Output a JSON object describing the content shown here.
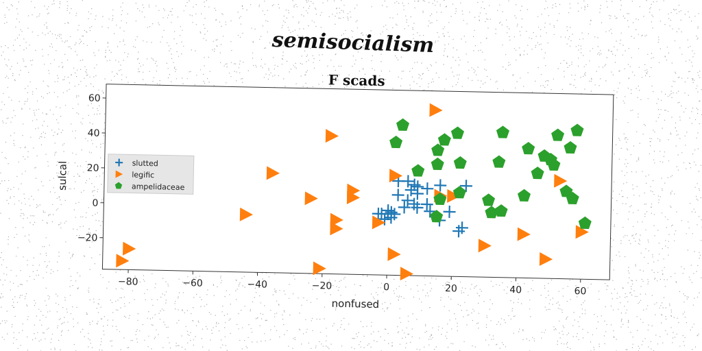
{
  "figure": {
    "suptitle": "semisocialism"
  },
  "chart_data": {
    "type": "scatter",
    "title": "F scads",
    "xlabel": "nonfused",
    "ylabel": "sulcal",
    "xlim": [
      -88,
      69
    ],
    "ylim": [
      -38,
      68
    ],
    "xticks": [
      -80,
      -60,
      -40,
      -20,
      0,
      20,
      40,
      60
    ],
    "yticks": [
      -20,
      0,
      20,
      40,
      60
    ],
    "xtick_labels": [
      "−80",
      "−60",
      "−40",
      "−20",
      "0",
      "20",
      "40",
      "60"
    ],
    "ytick_labels": [
      "−20",
      "0",
      "20",
      "40",
      "60"
    ],
    "grid": false,
    "legend_position": "center-left",
    "series": [
      {
        "name": "slutted",
        "marker": "plus",
        "color": "#1f77b4",
        "points": [
          [
            3,
            16
          ],
          [
            6,
            16
          ],
          [
            8,
            14
          ],
          [
            9,
            13
          ],
          [
            12,
            12
          ],
          [
            16,
            14
          ],
          [
            24,
            14
          ],
          [
            7,
            11
          ],
          [
            9,
            9
          ],
          [
            3,
            8
          ],
          [
            6,
            5
          ],
          [
            8,
            3
          ],
          [
            12,
            3
          ],
          [
            5,
            1
          ],
          [
            9,
            1
          ],
          [
            13,
            -1
          ],
          [
            19,
            -1
          ],
          [
            16,
            -6
          ],
          [
            22,
            -12
          ],
          [
            23,
            -10
          ],
          [
            -3,
            -3
          ],
          [
            -2,
            -3
          ],
          [
            0,
            -3
          ],
          [
            1,
            -5
          ],
          [
            -1,
            -6
          ],
          [
            1,
            -2
          ],
          [
            2,
            -3
          ],
          [
            0,
            -1
          ]
        ]
      },
      {
        "name": "legific",
        "marker": "triangle-right",
        "color": "#ff7f0e",
        "points": [
          [
            14,
            57
          ],
          [
            -18,
            41
          ],
          [
            -36,
            19
          ],
          [
            2,
            19
          ],
          [
            -11,
            10
          ],
          [
            -11,
            6
          ],
          [
            -24,
            5
          ],
          [
            16,
            8
          ],
          [
            20,
            8
          ],
          [
            53,
            18
          ],
          [
            -44,
            -5
          ],
          [
            -16,
            -7
          ],
          [
            -16,
            -12
          ],
          [
            -3,
            -8
          ],
          [
            60,
            -11
          ],
          [
            42,
            -13
          ],
          [
            30,
            -20
          ],
          [
            2,
            -26
          ],
          [
            49,
            -27
          ],
          [
            -21,
            -35
          ],
          [
            6,
            -37
          ],
          [
            -80,
            -26
          ],
          [
            -82,
            -33
          ]
        ]
      },
      {
        "name": "ampelidaceae",
        "marker": "pentagon",
        "color": "#2ca02c",
        "points": [
          [
            4,
            48
          ],
          [
            2,
            38
          ],
          [
            17,
            40
          ],
          [
            15,
            34
          ],
          [
            21,
            44
          ],
          [
            35,
            45
          ],
          [
            43,
            36
          ],
          [
            52,
            44
          ],
          [
            58,
            47
          ],
          [
            56,
            37
          ],
          [
            48,
            32
          ],
          [
            50,
            30
          ],
          [
            51,
            27
          ],
          [
            34,
            28
          ],
          [
            15,
            26
          ],
          [
            22,
            27
          ],
          [
            9,
            22
          ],
          [
            46,
            22
          ],
          [
            55,
            12
          ],
          [
            57,
            8
          ],
          [
            42,
            9
          ],
          [
            31,
            6
          ],
          [
            16,
            6
          ],
          [
            22,
            10
          ],
          [
            32,
            -1
          ],
          [
            35,
            0
          ],
          [
            15,
            -4
          ],
          [
            61,
            -6
          ]
        ]
      }
    ]
  }
}
